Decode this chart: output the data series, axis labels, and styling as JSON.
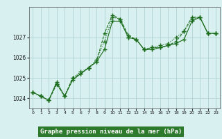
{
  "title": "Graphe pression niveau de la mer (hPa)",
  "xlabel_hours": [
    0,
    1,
    2,
    3,
    4,
    5,
    6,
    7,
    8,
    9,
    10,
    11,
    12,
    13,
    14,
    15,
    16,
    17,
    18,
    19,
    20,
    21,
    22,
    23
  ],
  "line1": [
    1024.3,
    1024.1,
    1023.9,
    1024.8,
    1024.1,
    1024.9,
    1025.2,
    1025.5,
    1025.8,
    1026.4,
    1027.8,
    1027.8,
    1027.0,
    1026.9,
    1026.4,
    1026.4,
    1026.5,
    1026.6,
    1026.7,
    1026.9,
    1027.8,
    1028.0,
    1027.2,
    1027.2
  ],
  "line2": [
    1024.3,
    1024.1,
    1023.9,
    1024.7,
    1024.1,
    1025.0,
    1025.3,
    1025.5,
    1025.9,
    1026.8,
    1028.0,
    1027.9,
    1027.0,
    1026.9,
    1026.4,
    1026.5,
    1026.6,
    1026.7,
    1027.0,
    1027.3,
    1027.9,
    1028.0,
    1027.2,
    1027.2
  ],
  "line3": [
    1024.3,
    1024.1,
    1023.9,
    1024.7,
    1024.1,
    1025.0,
    1025.2,
    1025.5,
    1025.8,
    1027.2,
    1028.1,
    1027.9,
    1027.1,
    1026.9,
    1026.4,
    1026.5,
    1026.5,
    1026.6,
    1026.8,
    1027.3,
    1028.0,
    1028.0,
    1027.2,
    1027.2
  ],
  "bg_color": "#d8f0f0",
  "grid_color": "#aacccc",
  "line_color": "#1a6b1a",
  "marker_color": "#1a6b1a",
  "ylabel_ticks": [
    1024,
    1025,
    1026,
    1027
  ],
  "ylim": [
    1023.5,
    1028.5
  ],
  "xlim": [
    -0.5,
    23.5
  ],
  "footer_bg": "#2d7a2d",
  "footer_text_color": "#ffffff"
}
